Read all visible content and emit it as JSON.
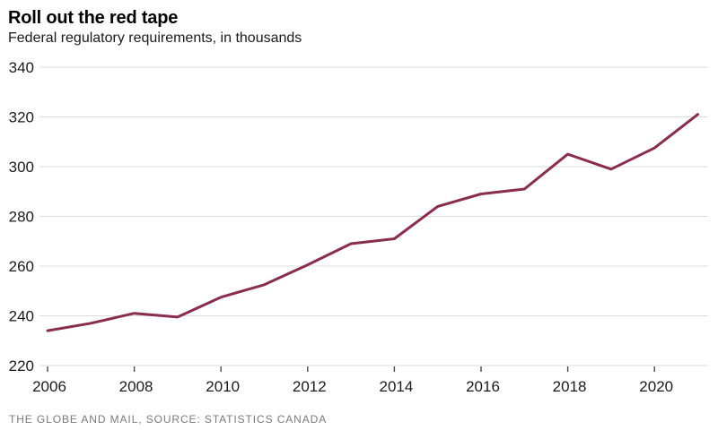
{
  "header": {
    "title": "Roll out the red tape",
    "subtitle": "Federal regulatory requirements, in thousands"
  },
  "footer": {
    "credit": "THE GLOBE AND MAIL, SOURCE: STATISTICS CANADA"
  },
  "chart_data": {
    "type": "line",
    "title": "Roll out the red tape",
    "subtitle": "Federal regulatory requirements, in thousands",
    "x": [
      2006,
      2007,
      2008,
      2009,
      2010,
      2011,
      2012,
      2013,
      2014,
      2015,
      2016,
      2017,
      2018,
      2019,
      2020,
      2021
    ],
    "series": [
      {
        "name": "Federal regulatory requirements (thousands)",
        "values": [
          234,
          237,
          241,
          239.5,
          247.5,
          252.5,
          260.5,
          269,
          271,
          284,
          289,
          291,
          305,
          299,
          307.5,
          321
        ]
      }
    ],
    "ylim": [
      220,
      340
    ],
    "yticks": [
      220,
      240,
      260,
      280,
      300,
      320,
      340
    ],
    "xticks": [
      2006,
      2008,
      2010,
      2012,
      2014,
      2016,
      2018,
      2020
    ],
    "grid": "horizontal",
    "legend": "none",
    "colors": {
      "line": "#8a2c4b",
      "grid": "#dcdcdc",
      "axis_tick": "#4a4a4a",
      "label": "#1a1a1a"
    },
    "source": "THE GLOBE AND MAIL, SOURCE: STATISTICS CANADA"
  }
}
